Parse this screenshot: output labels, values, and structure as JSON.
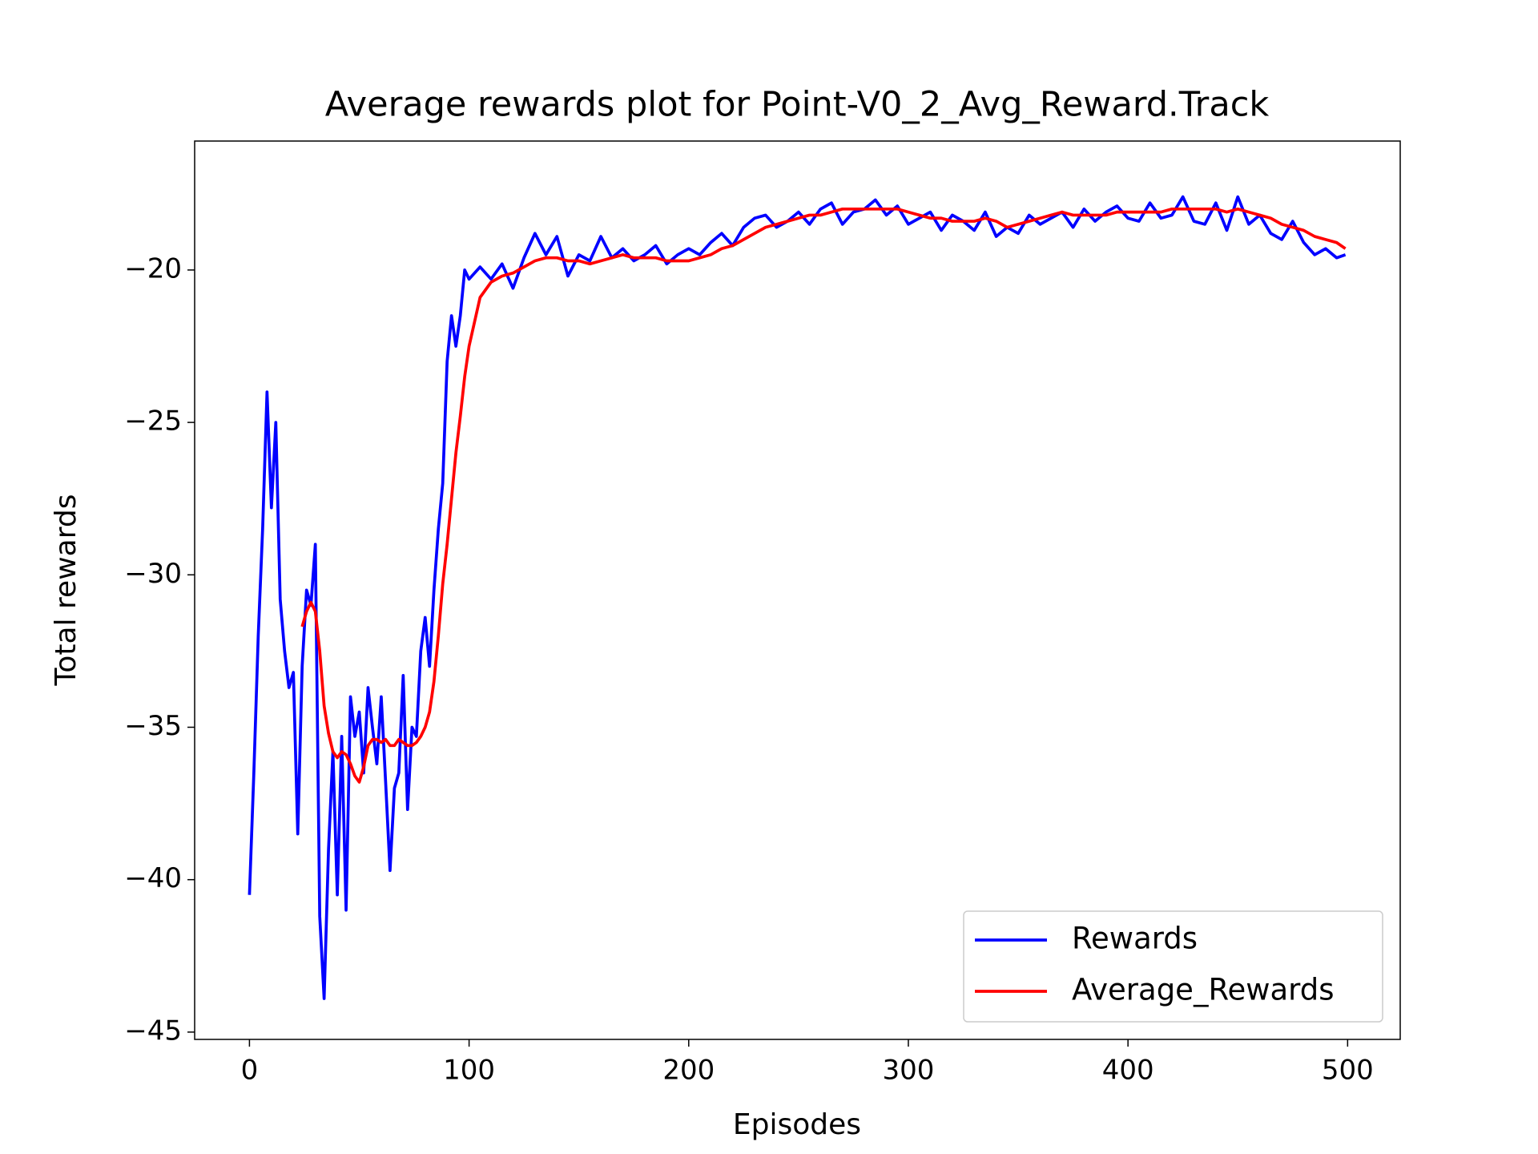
{
  "chart_data": {
    "type": "line",
    "title": "Average rewards plot for Point-V0_2_Avg_Reward.Track",
    "xlabel": "Episodes",
    "ylabel": "Total rewards",
    "x": [
      0,
      2,
      4,
      6,
      8,
      10,
      12,
      14,
      16,
      18,
      20,
      22,
      24,
      26,
      28,
      30,
      32,
      34,
      36,
      38,
      40,
      42,
      44,
      46,
      48,
      50,
      52,
      54,
      56,
      58,
      60,
      62,
      64,
      66,
      68,
      70,
      72,
      74,
      76,
      78,
      80,
      82,
      84,
      86,
      88,
      90,
      92,
      94,
      96,
      98,
      100,
      105,
      110,
      115,
      120,
      125,
      130,
      135,
      140,
      145,
      150,
      155,
      160,
      165,
      170,
      175,
      180,
      185,
      190,
      195,
      200,
      205,
      210,
      215,
      220,
      225,
      230,
      235,
      240,
      245,
      250,
      255,
      260,
      265,
      270,
      275,
      280,
      285,
      290,
      295,
      300,
      305,
      310,
      315,
      320,
      325,
      330,
      335,
      340,
      345,
      350,
      355,
      360,
      365,
      370,
      375,
      380,
      385,
      390,
      395,
      400,
      405,
      410,
      415,
      420,
      425,
      430,
      435,
      440,
      445,
      450,
      455,
      460,
      465,
      470,
      475,
      480,
      485,
      490,
      495,
      499
    ],
    "series": [
      {
        "name": "Rewards",
        "color": "#0000ff",
        "values": [
          -40.5,
          -36.5,
          -32,
          -28.5,
          -24,
          -27.8,
          -25,
          -30.8,
          -32.5,
          -33.7,
          -33.2,
          -38.5,
          -33,
          -30.5,
          -31,
          -29,
          -41.2,
          -43.9,
          -39,
          -35.8,
          -40.5,
          -35.3,
          -41,
          -34,
          -35.3,
          -34.5,
          -36.5,
          -33.7,
          -35,
          -36.2,
          -34,
          -36.8,
          -39.7,
          -37,
          -36.5,
          -33.3,
          -37.7,
          -35,
          -35.3,
          -32.5,
          -31.4,
          -33,
          -30.5,
          -28.5,
          -27,
          -23,
          -21.5,
          -22.5,
          -21.5,
          -20,
          -20.3,
          -19.9,
          -20.3,
          -19.8,
          -20.6,
          -19.6,
          -18.8,
          -19.5,
          -18.9,
          -20.2,
          -19.5,
          -19.7,
          -18.9,
          -19.6,
          -19.3,
          -19.7,
          -19.5,
          -19.2,
          -19.8,
          -19.5,
          -19.3,
          -19.5,
          -19.1,
          -18.8,
          -19.2,
          -18.6,
          -18.3,
          -18.2,
          -18.6,
          -18.4,
          -18.1,
          -18.5,
          -18,
          -17.8,
          -18.5,
          -18.1,
          -18,
          -17.7,
          -18.2,
          -17.9,
          -18.5,
          -18.3,
          -18.1,
          -18.7,
          -18.2,
          -18.4,
          -18.7,
          -18.1,
          -18.9,
          -18.6,
          -18.8,
          -18.2,
          -18.5,
          -18.3,
          -18.1,
          -18.6,
          -18,
          -18.4,
          -18.1,
          -17.9,
          -18.3,
          -18.4,
          -17.8,
          -18.3,
          -18.2,
          -17.6,
          -18.4,
          -18.5,
          -17.8,
          -18.7,
          -17.6,
          -18.5,
          -18.2,
          -18.8,
          -19,
          -18.4,
          -19.1,
          -19.5,
          -19.3,
          -19.6,
          -19.5
        ]
      },
      {
        "name": "Average_Rewards",
        "color": "#ff0000",
        "values": [
          null,
          null,
          null,
          null,
          null,
          null,
          null,
          null,
          null,
          null,
          null,
          null,
          -31.7,
          -31.2,
          -30.9,
          -31.2,
          -32.5,
          -34.3,
          -35.2,
          -35.8,
          -36,
          -35.8,
          -35.9,
          -36.2,
          -36.6,
          -36.8,
          -36.3,
          -35.6,
          -35.4,
          -35.4,
          -35.5,
          -35.4,
          -35.6,
          -35.6,
          -35.4,
          -35.5,
          -35.6,
          -35.6,
          -35.5,
          -35.3,
          -35,
          -34.5,
          -33.5,
          -32,
          -30.3,
          -29,
          -27.5,
          -26,
          -24.8,
          -23.5,
          -22.5,
          -20.9,
          -20.4,
          -20.2,
          -20.1,
          -19.9,
          -19.7,
          -19.6,
          -19.6,
          -19.7,
          -19.7,
          -19.8,
          -19.7,
          -19.6,
          -19.5,
          -19.6,
          -19.6,
          -19.6,
          -19.7,
          -19.7,
          -19.7,
          -19.6,
          -19.5,
          -19.3,
          -19.2,
          -19,
          -18.8,
          -18.6,
          -18.5,
          -18.4,
          -18.3,
          -18.2,
          -18.2,
          -18.1,
          -18,
          -18,
          -18,
          -18,
          -18,
          -18,
          -18.1,
          -18.2,
          -18.3,
          -18.3,
          -18.4,
          -18.4,
          -18.4,
          -18.3,
          -18.4,
          -18.6,
          -18.5,
          -18.4,
          -18.3,
          -18.2,
          -18.1,
          -18.2,
          -18.2,
          -18.2,
          -18.2,
          -18.1,
          -18.1,
          -18.1,
          -18.1,
          -18.1,
          -18,
          -18,
          -18,
          -18,
          -18,
          -18.1,
          -18,
          -18.1,
          -18.2,
          -18.3,
          -18.5,
          -18.6,
          -18.7,
          -18.9,
          -19,
          -19.1,
          -19.3
        ]
      }
    ],
    "xlim": [
      -24.95,
      523.95
    ],
    "ylim": [
      -45.24,
      -15.77
    ],
    "xticks": [
      0,
      100,
      200,
      300,
      400,
      500
    ],
    "yticks": [
      {
        "value": -20,
        "label": "−20"
      },
      {
        "value": -25,
        "label": "−25"
      },
      {
        "value": -30,
        "label": "−30"
      },
      {
        "value": -35,
        "label": "−35"
      },
      {
        "value": -40,
        "label": "−40"
      },
      {
        "value": -45,
        "label": "−45"
      }
    ],
    "legend": "lower right",
    "grid": false
  }
}
